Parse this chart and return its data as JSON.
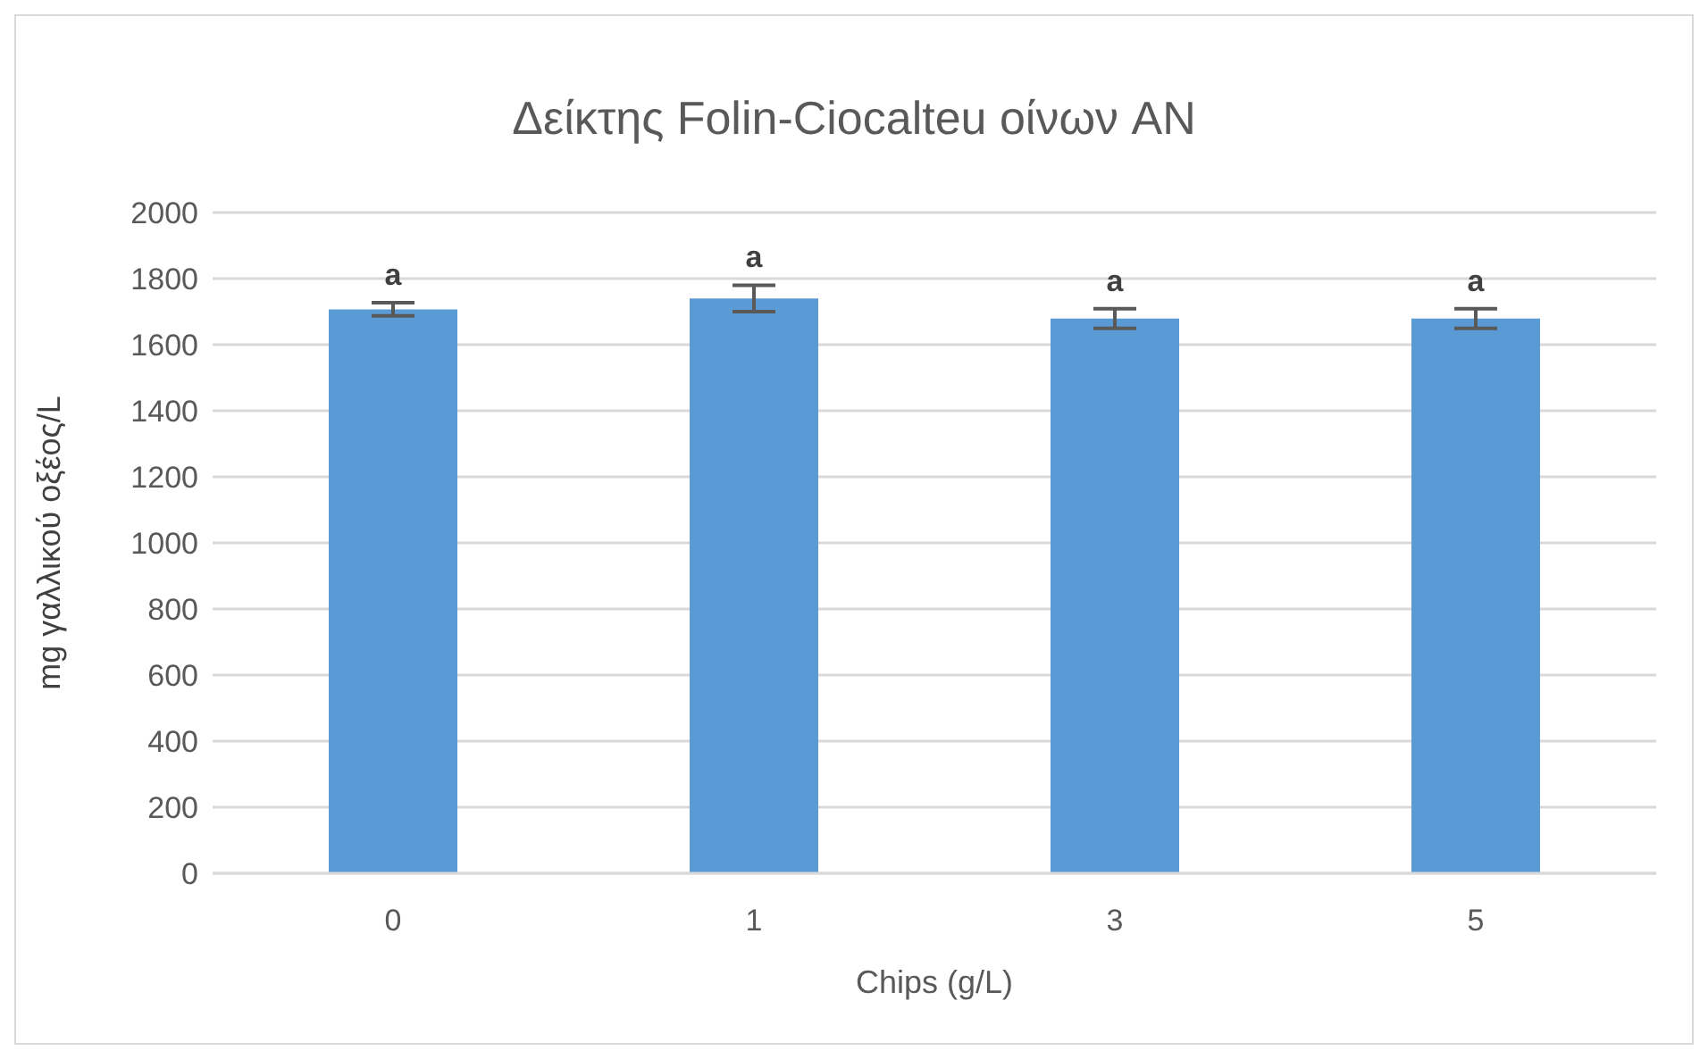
{
  "chart_data": {
    "type": "bar",
    "title": "Δείκτης Folin-Ciocalteu  οίνων AN",
    "xlabel": "Chips (g/L)",
    "ylabel": "mg γαλλικού οξέος/L",
    "categories": [
      "0",
      "1",
      "3",
      "5"
    ],
    "values": [
      1707,
      1740,
      1679,
      1679
    ],
    "errors": [
      20,
      40,
      30,
      30
    ],
    "color": "#5b9bd5",
    "ylim": [
      0,
      2000
    ],
    "yticks": [
      0,
      200,
      400,
      600,
      800,
      1000,
      1200,
      1400,
      1600,
      1800,
      2000
    ],
    "grid": "y",
    "annotations": [
      {
        "text": "a",
        "x": "0",
        "y": 1727
      },
      {
        "text": "a",
        "x": "1",
        "y": 1780
      },
      {
        "text": "a",
        "x": "3",
        "y": 1709
      },
      {
        "text": "a",
        "x": "5",
        "y": 1709
      }
    ]
  }
}
